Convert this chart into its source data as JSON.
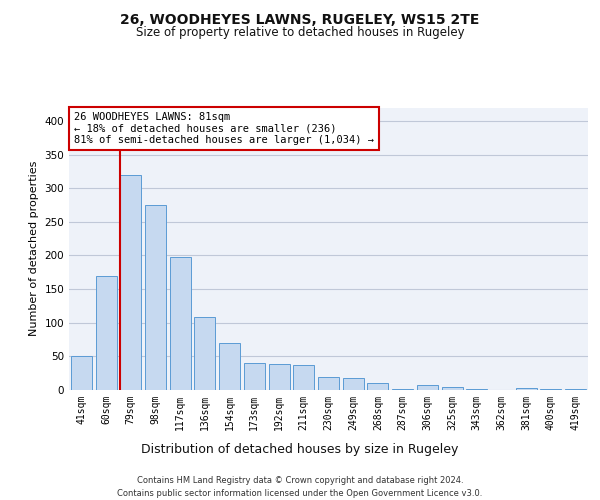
{
  "title1": "26, WOODHEYES LAWNS, RUGELEY, WS15 2TE",
  "title2": "Size of property relative to detached houses in Rugeley",
  "xlabel": "Distribution of detached houses by size in Rugeley",
  "ylabel": "Number of detached properties",
  "footer": "Contains HM Land Registry data © Crown copyright and database right 2024.\nContains public sector information licensed under the Open Government Licence v3.0.",
  "categories": [
    "41sqm",
    "60sqm",
    "79sqm",
    "98sqm",
    "117sqm",
    "136sqm",
    "154sqm",
    "173sqm",
    "192sqm",
    "211sqm",
    "230sqm",
    "249sqm",
    "268sqm",
    "287sqm",
    "306sqm",
    "325sqm",
    "343sqm",
    "362sqm",
    "381sqm",
    "400sqm",
    "419sqm"
  ],
  "values": [
    50,
    170,
    320,
    275,
    197,
    108,
    70,
    40,
    38,
    37,
    20,
    18,
    10,
    2,
    7,
    5,
    2,
    0,
    3,
    2,
    2
  ],
  "bar_color": "#c6d9f0",
  "bar_edge_color": "#5b9bd5",
  "grid_color": "#c0c8d8",
  "background_color": "#eef2f9",
  "annotation_box_color": "#cc0000",
  "annotation_text": "26 WOODHEYES LAWNS: 81sqm\n← 18% of detached houses are smaller (236)\n81% of semi-detached houses are larger (1,034) →",
  "ylim": [
    0,
    420
  ],
  "yticks": [
    0,
    50,
    100,
    150,
    200,
    250,
    300,
    350,
    400
  ],
  "title1_fontsize": 10,
  "title2_fontsize": 8.5,
  "ylabel_fontsize": 8,
  "xlabel_fontsize": 9,
  "tick_fontsize": 7,
  "footer_fontsize": 6,
  "annot_fontsize": 7.5
}
